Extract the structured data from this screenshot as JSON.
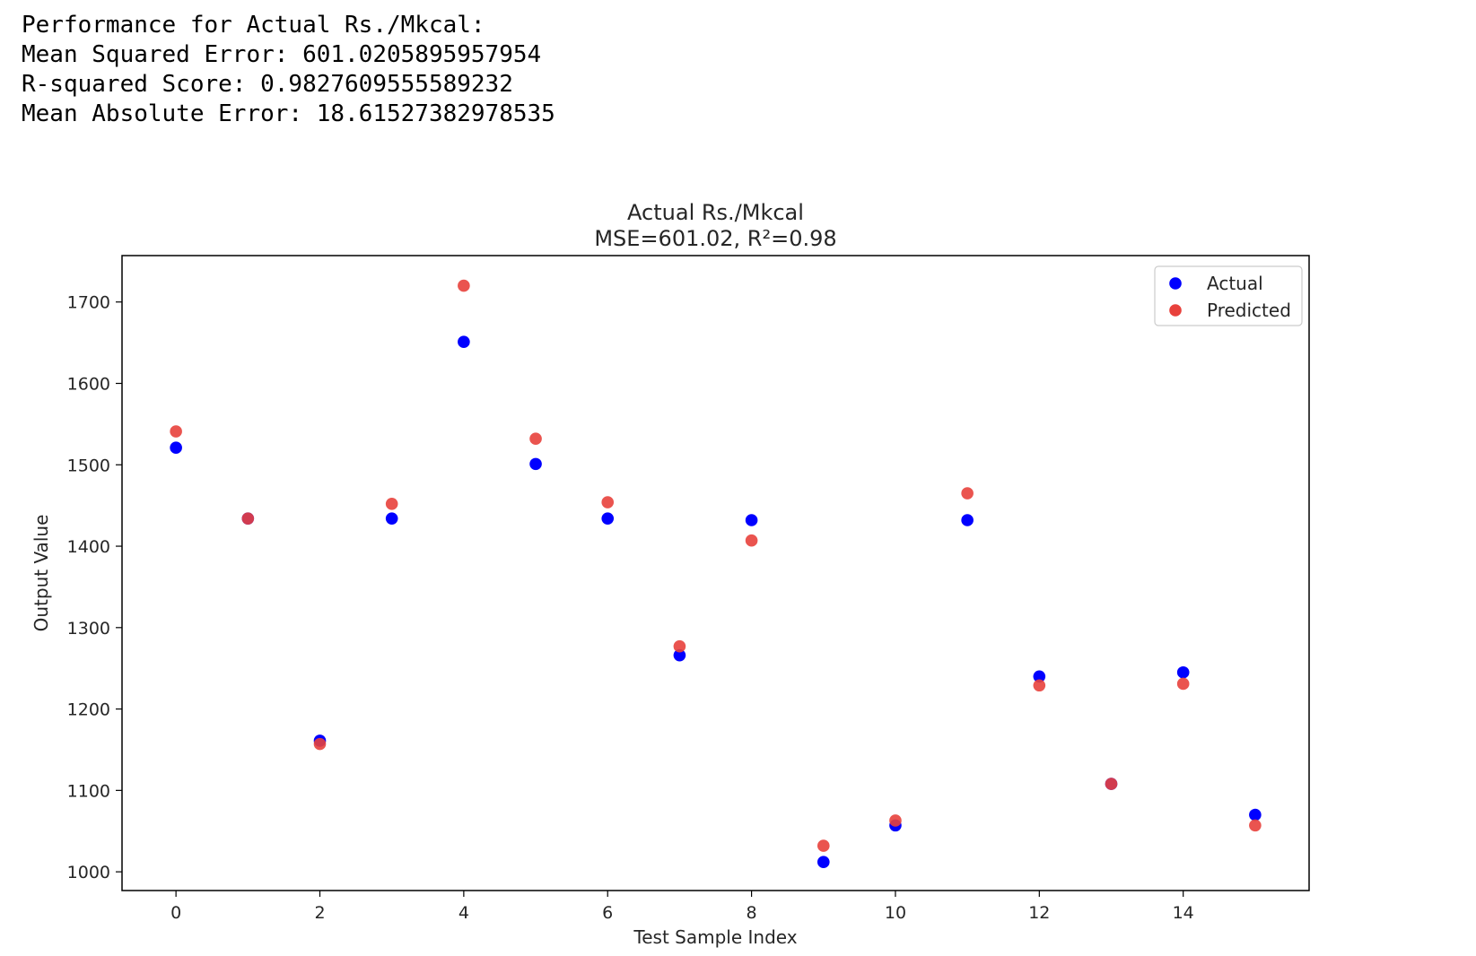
{
  "console": {
    "line1": "Performance for Actual Rs./Mkcal:",
    "line2": "Mean Squared Error: 601.0205895957954",
    "line3": "R-squared Score: 0.9827609555589232",
    "line4": "Mean Absolute Error: 18.61527382978535"
  },
  "chart_data": {
    "type": "scatter",
    "title": "Actual Rs./Mkcal",
    "subtitle": "MSE=601.02, R²=0.98",
    "xlabel": "Test Sample Index",
    "ylabel": "Output Value",
    "xlim": [
      -0.75,
      15.75
    ],
    "ylim": [
      977,
      1757
    ],
    "xticks": [
      0,
      2,
      4,
      6,
      8,
      10,
      12,
      14
    ],
    "yticks": [
      1000,
      1100,
      1200,
      1300,
      1400,
      1500,
      1600,
      1700
    ],
    "grid": false,
    "legend_position": "top-right",
    "x": [
      0,
      1,
      2,
      3,
      4,
      5,
      6,
      7,
      8,
      9,
      10,
      11,
      12,
      13,
      14,
      15
    ],
    "series": [
      {
        "name": "Actual",
        "color": "#0000ff",
        "values": [
          1521,
          1434,
          1161,
          1434,
          1651,
          1501,
          1434,
          1266,
          1432,
          1012,
          1057,
          1432,
          1240,
          1108,
          1245,
          1070
        ]
      },
      {
        "name": "Predicted",
        "color": "#e8413c",
        "values": [
          1541,
          1434,
          1157,
          1452,
          1720,
          1532,
          1454,
          1277,
          1407,
          1032,
          1063,
          1465,
          1229,
          1108,
          1231,
          1057
        ]
      }
    ]
  }
}
